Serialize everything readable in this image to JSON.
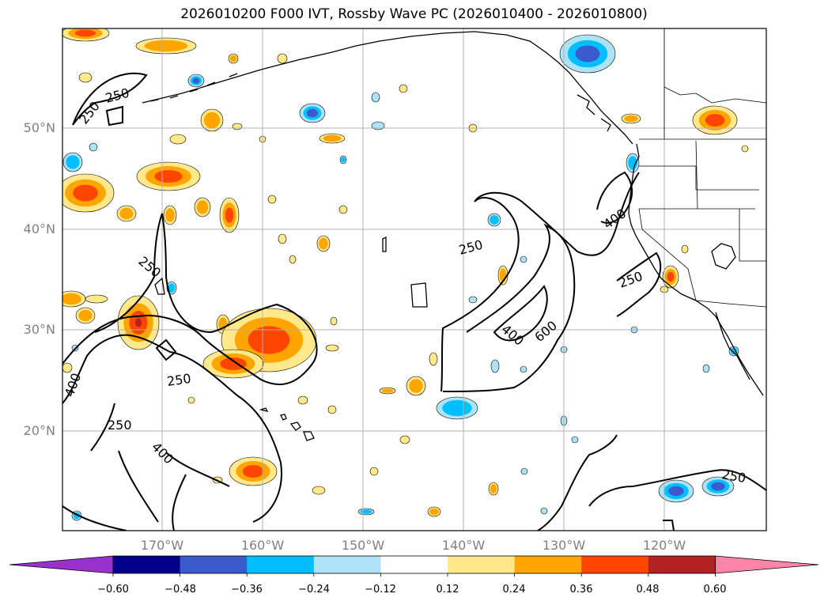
{
  "title": "2026010200 F000 IVT, Rossby Wave PC (2026010400 - 2026010800)",
  "lat_labels": [
    "50°N",
    "40°N",
    "30°N",
    "20°N"
  ],
  "lon_labels": [
    "170°W",
    "160°W",
    "150°W",
    "140°W",
    "130°W",
    "120°W"
  ],
  "contour_labels": [
    "250",
    "250",
    "250",
    "400",
    "250",
    "250",
    "400",
    "250",
    "400",
    "600",
    "400",
    "250",
    "250"
  ],
  "colorbar": {
    "ticks": [
      "−0.60",
      "−0.48",
      "−0.36",
      "−0.24",
      "−0.12",
      "0.12",
      "0.24",
      "0.36",
      "0.48",
      "0.60"
    ],
    "colors": [
      "#9932cc",
      "#00008b",
      "#3b5bcc",
      "#00bfff",
      "#ade3f7",
      "#ffffff",
      "#ffe98a",
      "#ffa500",
      "#ff4500",
      "#b22222",
      "#ff85a8"
    ]
  },
  "colors": {
    "pos1": "#ffe98a",
    "pos2": "#ffa500",
    "pos3": "#ff4500",
    "pos4": "#b22222",
    "neg1": "#ade3f7",
    "neg2": "#00bfff",
    "neg3": "#3b5bcc"
  }
}
